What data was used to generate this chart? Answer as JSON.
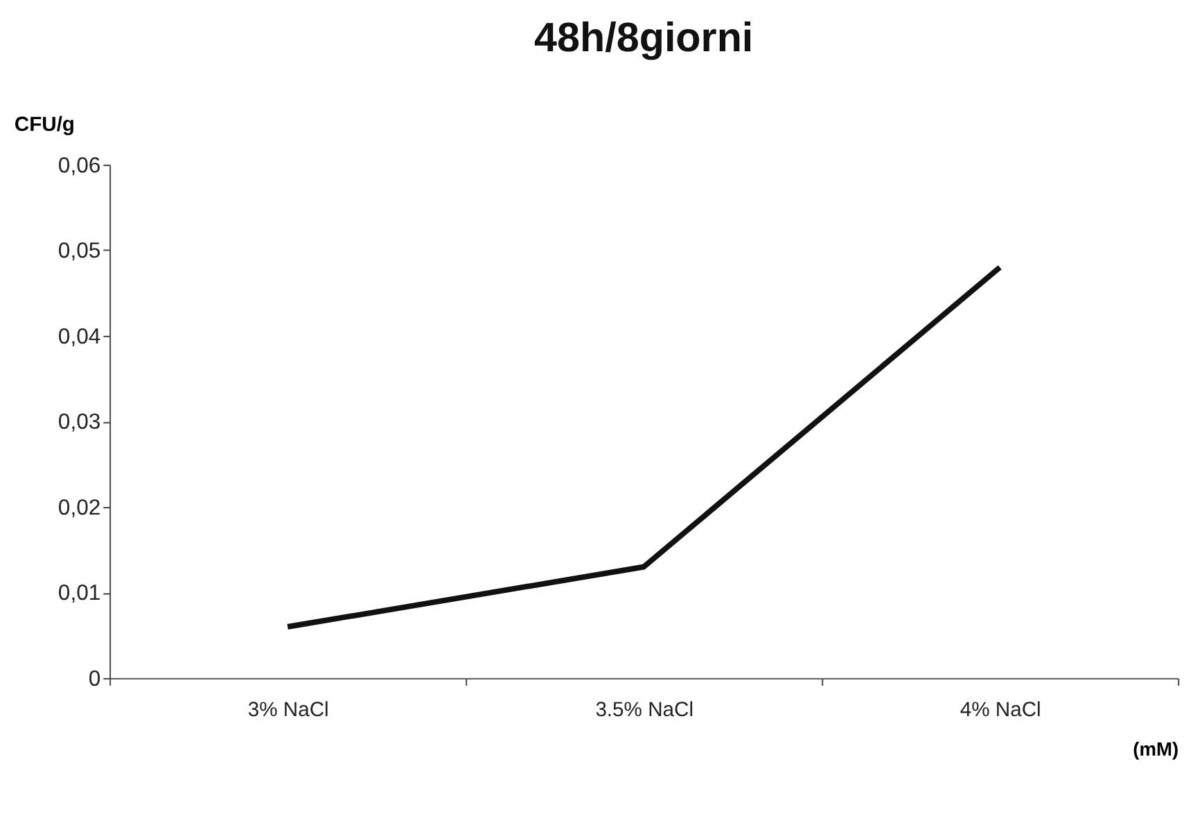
{
  "chart_data": {
    "type": "line",
    "title": "48h/8giorni",
    "ylabel": "CFU/g",
    "xlabel": "(mM)",
    "categories": [
      "3% NaCl",
      "3.5% NaCl",
      "4% NaCl"
    ],
    "series": [
      {
        "color": "#111111",
        "values": [
          0.006,
          0.013,
          0.048
        ]
      }
    ],
    "ylim": [
      0,
      0.06
    ],
    "yticks": [
      0,
      {
        "value": 0.01,
        "label": "0,01"
      },
      {
        "value": 0.02,
        "label": "0,02"
      },
      {
        "value": 0.03,
        "label": "0,03"
      },
      {
        "value": 0.04,
        "label": "0,04"
      },
      {
        "value": 0.05,
        "label": "0,05"
      },
      {
        "value": 0.06,
        "label": "0,06"
      }
    ],
    "grid": false,
    "marker": "none",
    "line_style": "solid"
  }
}
